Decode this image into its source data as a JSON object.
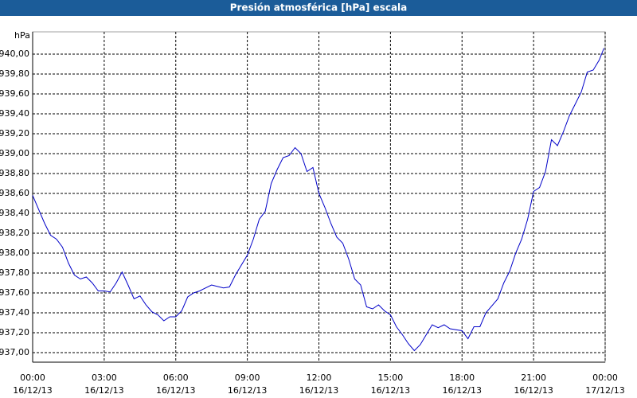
{
  "chart_data": {
    "type": "line",
    "title": "Presión atmosférica [hPa] escala",
    "y_label": "hPa",
    "x": [
      0,
      0.5,
      0.75,
      1,
      1.25,
      1.5,
      1.75,
      2,
      2.25,
      2.5,
      2.75,
      3,
      3.25,
      3.5,
      3.75,
      4,
      4.25,
      4.5,
      4.75,
      5,
      5.25,
      5.5,
      5.75,
      6,
      6.25,
      6.5,
      6.75,
      7,
      7.5,
      8,
      8.25,
      8.5,
      9,
      9.25,
      9.5,
      9.75,
      10,
      10.25,
      10.5,
      10.75,
      11,
      11.25,
      11.5,
      11.75,
      12,
      12.25,
      12.5,
      12.75,
      13,
      13.25,
      13.5,
      13.75,
      14,
      14.25,
      14.5,
      14.75,
      15,
      15.25,
      15.5,
      15.75,
      16,
      16.25,
      16.5,
      16.75,
      17,
      17.25,
      17.5,
      18,
      18.25,
      18.5,
      18.75,
      19,
      19.5,
      19.75,
      20,
      20.25,
      20.5,
      20.75,
      21,
      21.25,
      21.5,
      21.75,
      22,
      22.25,
      22.5,
      22.75,
      23,
      23.25,
      23.5,
      23.75,
      23.95
    ],
    "series": [
      {
        "name": "Presión",
        "color": "#0000c8",
        "values": [
          938.58,
          938.3,
          938.18,
          938.14,
          938.06,
          937.9,
          937.78,
          937.74,
          937.76,
          937.7,
          937.62,
          937.62,
          937.61,
          937.7,
          937.81,
          937.68,
          937.54,
          937.57,
          937.48,
          937.41,
          937.38,
          937.32,
          937.36,
          937.36,
          937.42,
          937.56,
          937.6,
          937.62,
          937.68,
          937.65,
          937.66,
          937.78,
          937.98,
          938.14,
          938.34,
          938.42,
          938.7,
          938.84,
          938.96,
          938.98,
          939.06,
          939.0,
          938.82,
          938.86,
          938.6,
          938.46,
          938.3,
          938.16,
          938.1,
          937.94,
          937.74,
          937.68,
          937.46,
          937.44,
          937.48,
          937.42,
          937.38,
          937.26,
          937.18,
          937.09,
          937.02,
          937.08,
          937.18,
          937.28,
          937.25,
          937.28,
          937.24,
          937.22,
          937.14,
          937.26,
          937.26,
          937.4,
          937.54,
          937.7,
          937.82,
          938.0,
          938.14,
          938.34,
          938.62,
          938.66,
          938.82,
          939.14,
          939.08,
          939.22,
          939.38,
          939.5,
          939.62,
          939.82,
          939.84,
          939.94,
          940.06
        ]
      }
    ],
    "xlim": [
      0,
      24
    ],
    "xticks": [
      {
        "value": 0,
        "label": "00:00",
        "date": "16/12/13"
      },
      {
        "value": 3,
        "label": "03:00",
        "date": "16/12/13"
      },
      {
        "value": 6,
        "label": "06:00",
        "date": "16/12/13"
      },
      {
        "value": 9,
        "label": "09:00",
        "date": "16/12/13"
      },
      {
        "value": 12,
        "label": "12:00",
        "date": "16/12/13"
      },
      {
        "value": 15,
        "label": "15:00",
        "date": "16/12/13"
      },
      {
        "value": 18,
        "label": "18:00",
        "date": "16/12/13"
      },
      {
        "value": 21,
        "label": "21:00",
        "date": "16/12/13"
      },
      {
        "value": 24,
        "label": "00:00",
        "date": "17/12/13"
      }
    ],
    "ylim": [
      936.904,
      940.224
    ],
    "yticks": [
      {
        "value": 937,
        "label": "937,00"
      },
      {
        "value": 937.2,
        "label": "937,20"
      },
      {
        "value": 937.4,
        "label": "937,40"
      },
      {
        "value": 937.6,
        "label": "937,60"
      },
      {
        "value": 937.8,
        "label": "937,80"
      },
      {
        "value": 938,
        "label": "938,00"
      },
      {
        "value": 938.2,
        "label": "938,20"
      },
      {
        "value": 938.4,
        "label": "938,40"
      },
      {
        "value": 938.6,
        "label": "938,60"
      },
      {
        "value": 938.8,
        "label": "938,80"
      },
      {
        "value": 939,
        "label": "939,00"
      },
      {
        "value": 939.2,
        "label": "939,20"
      },
      {
        "value": 939.4,
        "label": "939,40"
      },
      {
        "value": 939.6,
        "label": "939,60"
      },
      {
        "value": 939.8,
        "label": "939,80"
      },
      {
        "value": 940,
        "label": "940,00"
      }
    ],
    "grid": true
  }
}
